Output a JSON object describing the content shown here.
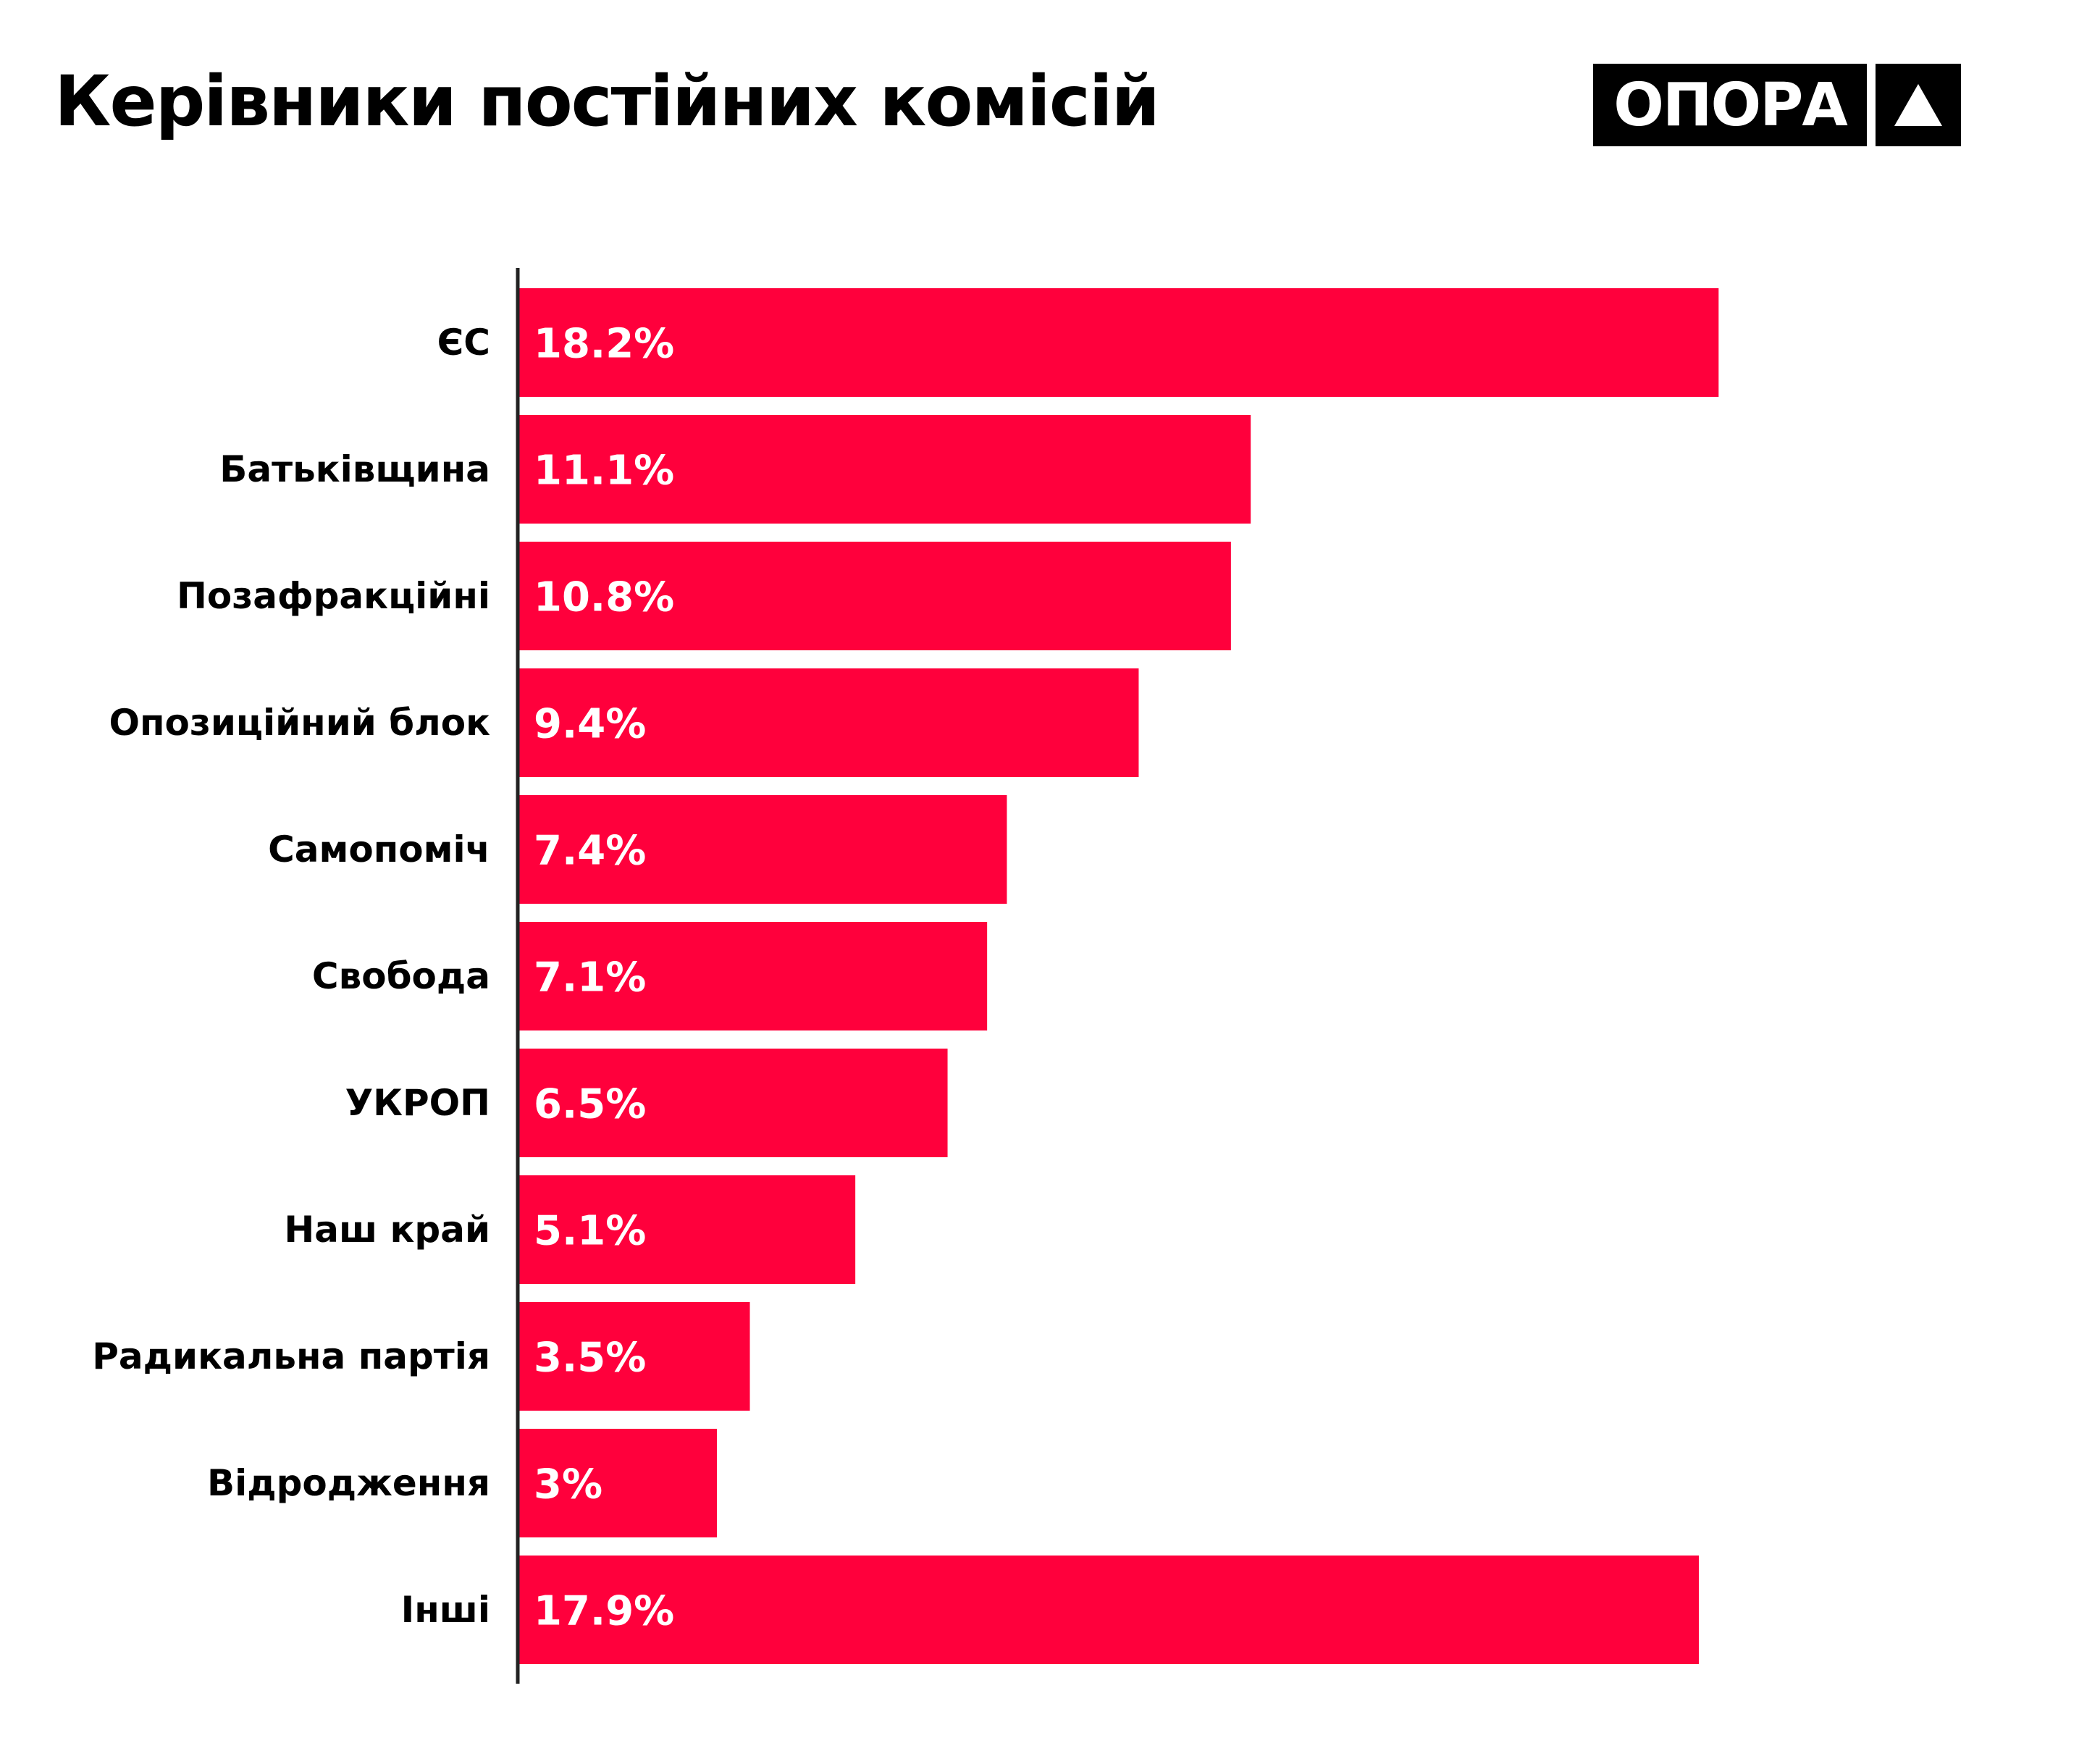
{
  "header": {
    "title": "Керівники постійних комісій",
    "logo_text": "ОПОРА"
  },
  "colors": {
    "bar": "#ff003c",
    "axis": "#222222",
    "text": "#000000",
    "value_text": "#ffffff"
  },
  "icons": {
    "logo_mark": "triangle-icon"
  },
  "chart_data": {
    "type": "bar",
    "orientation": "horizontal",
    "title": "Керівники постійних комісій",
    "xlabel": "",
    "ylabel": "",
    "grid": false,
    "legend": "none",
    "xlim": [
      0,
      20
    ],
    "categories": [
      "ЄС",
      "Батьківщина",
      "Позафракційні",
      "Опозиційний блок",
      "Самопоміч",
      "Свобода",
      "УКРОП",
      "Наш край",
      "Радикальна партія",
      "Відродження",
      "Інші"
    ],
    "values": [
      18.2,
      11.1,
      10.8,
      9.4,
      7.4,
      7.1,
      6.5,
      5.1,
      3.5,
      3,
      17.9
    ],
    "value_labels": [
      "18.2%",
      "11.1%",
      "10.8%",
      "9.4%",
      "7.4%",
      "7.1%",
      "6.5%",
      "5.1%",
      "3.5%",
      "3%",
      "17.9%"
    ]
  }
}
